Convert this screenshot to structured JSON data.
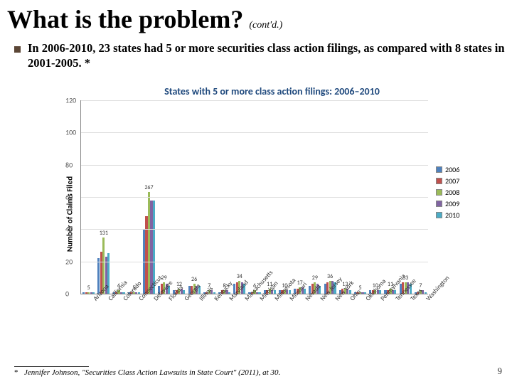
{
  "title": "What is the problem?",
  "contd": "(cont'd.)",
  "body": "In 2006-2010, 23 states had 5 or more securities class action filings, as compared with 8 states in 2001-2005. *",
  "footnote_prefix": "*",
  "footnote": "Jennifer Johnson, \"Securities Class Action Lawsuits in State Court\" (2011), at 30.",
  "page_number": "9",
  "chart": {
    "type": "grouped-bar",
    "title": "States with 5 or more class action filings: 2006–2010",
    "title_fontsize": 14,
    "title_color": "#1f497d",
    "ylabel": "Number of Claims Filed",
    "ylim": [
      0,
      120
    ],
    "ytick_step": 20,
    "grid_color": "#dedede",
    "axis_color": "#888888",
    "background_color": "#ffffff",
    "series": [
      {
        "name": "2006",
        "color": "#4f81bd"
      },
      {
        "name": "2007",
        "color": "#c0504d"
      },
      {
        "name": "2008",
        "color": "#9bbb59"
      },
      {
        "name": "2009",
        "color": "#8064a2"
      },
      {
        "name": "2010",
        "color": "#4bacc6"
      }
    ],
    "states": [
      {
        "label": "Arizona",
        "total": 5,
        "y": [
          1,
          1,
          1,
          1,
          1
        ]
      },
      {
        "label": "California",
        "total": 131,
        "y": [
          22,
          26,
          35,
          23,
          25
        ]
      },
      {
        "label": "Colorado",
        "total": 6,
        "y": [
          1,
          1,
          2,
          1,
          1
        ]
      },
      {
        "label": "Connecticut",
        "total": 5,
        "y": [
          1,
          1,
          1,
          1,
          1
        ]
      },
      {
        "label": "Delaware",
        "total": 267,
        "y": [
          40,
          48,
          63,
          58,
          58
        ]
      },
      {
        "label": "Florida",
        "total": 29,
        "y": [
          5,
          6,
          7,
          6,
          5
        ]
      },
      {
        "label": "Georgia",
        "total": 12,
        "y": [
          2,
          2,
          3,
          3,
          2
        ]
      },
      {
        "label": "Illinois",
        "total": 26,
        "y": [
          5,
          5,
          6,
          5,
          5
        ]
      },
      {
        "label": "Kentucky",
        "total": 7,
        "y": [
          1,
          1,
          2,
          2,
          1
        ]
      },
      {
        "label": "Maryland",
        "total": 8,
        "y": [
          1,
          2,
          2,
          2,
          1
        ]
      },
      {
        "label": "Massachusetts",
        "total": 34,
        "y": [
          6,
          7,
          8,
          7,
          6
        ]
      },
      {
        "label": "Michigan",
        "total": 6,
        "y": [
          1,
          1,
          2,
          1,
          1
        ]
      },
      {
        "label": "Minnesota",
        "total": 11,
        "y": [
          2,
          2,
          3,
          2,
          2
        ]
      },
      {
        "label": "Missouri",
        "total": 10,
        "y": [
          2,
          2,
          2,
          2,
          2
        ]
      },
      {
        "label": "Nevada",
        "total": 17,
        "y": [
          3,
          3,
          4,
          4,
          3
        ]
      },
      {
        "label": "New Jersey",
        "total": 29,
        "y": [
          5,
          6,
          7,
          6,
          5
        ]
      },
      {
        "label": "New York",
        "total": 36,
        "y": [
          6,
          7,
          8,
          8,
          7
        ]
      },
      {
        "label": "Ohio",
        "total": 13,
        "y": [
          2,
          3,
          3,
          3,
          2
        ]
      },
      {
        "label": "Oklahoma",
        "total": 5,
        "y": [
          1,
          1,
          1,
          1,
          1
        ]
      },
      {
        "label": "Pennsylvania",
        "total": 10,
        "y": [
          2,
          2,
          2,
          2,
          2
        ]
      },
      {
        "label": "Tennessee",
        "total": 11,
        "y": [
          2,
          2,
          3,
          2,
          2
        ]
      },
      {
        "label": "Texas",
        "total": 33,
        "y": [
          6,
          7,
          7,
          7,
          6
        ]
      },
      {
        "label": "Washington",
        "total": 7,
        "y": [
          1,
          1,
          2,
          2,
          1
        ]
      }
    ],
    "label_fontsize": 9,
    "tick_fontsize": 10,
    "total_label_fontsize": 8,
    "bar_group_gap_pct": 18
  }
}
